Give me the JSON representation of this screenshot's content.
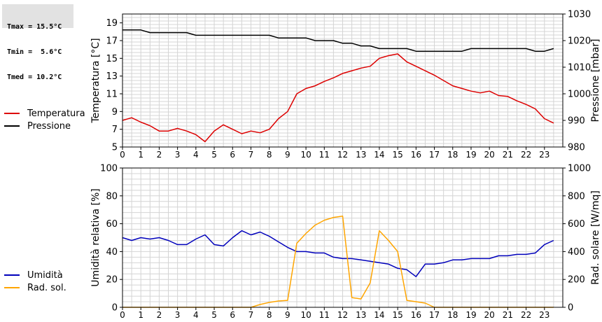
{
  "stats": {
    "lines": [
      "Tmax = 15.5°C",
      "Tmin =  5.6°C",
      "Tmed = 10.2°C"
    ]
  },
  "colors": {
    "temperature": "#dd0000",
    "pressure": "#000000",
    "humidity": "#0000bb",
    "solar": "#ffa500",
    "grid": "#d4d4d4"
  },
  "chart_data": [
    {
      "type": "line",
      "title": "",
      "xlabel": "",
      "x_ticks": [
        0,
        1,
        2,
        3,
        4,
        5,
        6,
        7,
        8,
        9,
        10,
        11,
        12,
        13,
        14,
        15,
        16,
        17,
        18,
        19,
        20,
        21,
        22,
        23
      ],
      "xlim": [
        0,
        24
      ],
      "ylabel": "Temperatura [°C]",
      "ylim": [
        5,
        20
      ],
      "y_ticks": [
        5,
        7,
        9,
        11,
        13,
        15,
        17,
        19
      ],
      "y2label": "Pressione [mbar]",
      "y2lim": [
        980,
        1030
      ],
      "y2_ticks": [
        980,
        990,
        1000,
        1010,
        1020,
        1030
      ],
      "grid": true,
      "legend_position": "left",
      "series": [
        {
          "name": "Temperatura",
          "axis": "left",
          "color": "#dd0000",
          "x": [
            0,
            0.5,
            1,
            1.5,
            2,
            2.5,
            3,
            3.5,
            4,
            4.5,
            5,
            5.5,
            6,
            6.5,
            7,
            7.5,
            8,
            8.5,
            9,
            9.5,
            10,
            10.5,
            11,
            11.5,
            12,
            12.5,
            13,
            13.5,
            14,
            14.5,
            15,
            15.5,
            16,
            16.5,
            17,
            17.5,
            18,
            18.5,
            19,
            19.5,
            20,
            20.5,
            21,
            21.5,
            22,
            22.5,
            23,
            23.5
          ],
          "y": [
            8.0,
            8.3,
            7.8,
            7.4,
            6.8,
            6.8,
            7.1,
            6.8,
            6.4,
            5.6,
            6.8,
            7.5,
            7.0,
            6.5,
            6.8,
            6.6,
            7.0,
            8.2,
            9.0,
            11.0,
            11.6,
            11.9,
            12.4,
            12.8,
            13.3,
            13.6,
            13.9,
            14.1,
            15.0,
            15.3,
            15.5,
            14.6,
            14.1,
            13.6,
            13.1,
            12.5,
            11.9,
            11.6,
            11.3,
            11.1,
            11.3,
            10.8,
            10.7,
            10.2,
            9.8,
            9.3,
            8.2,
            7.7
          ]
        },
        {
          "name": "Pressione",
          "axis": "right",
          "color": "#000000",
          "x": [
            0,
            0.5,
            1,
            1.5,
            2,
            2.5,
            3,
            3.5,
            4,
            4.5,
            5,
            5.5,
            6,
            6.5,
            7,
            7.5,
            8,
            8.5,
            9,
            9.5,
            10,
            10.5,
            11,
            11.5,
            12,
            12.5,
            13,
            13.5,
            14,
            14.5,
            15,
            15.5,
            16,
            16.5,
            17,
            17.5,
            18,
            18.5,
            19,
            19.5,
            20,
            20.5,
            21,
            21.5,
            22,
            22.5,
            23,
            23.5
          ],
          "y": [
            1024,
            1024,
            1024,
            1023,
            1023,
            1023,
            1023,
            1023,
            1022,
            1022,
            1022,
            1022,
            1022,
            1022,
            1022,
            1022,
            1022,
            1021,
            1021,
            1021,
            1021,
            1020,
            1020,
            1020,
            1019,
            1019,
            1018,
            1018,
            1017,
            1017,
            1017,
            1017,
            1016,
            1016,
            1016,
            1016,
            1016,
            1016,
            1017,
            1017,
            1017,
            1017,
            1017,
            1017,
            1017,
            1016,
            1016,
            1017
          ]
        }
      ]
    },
    {
      "type": "line",
      "title": "",
      "xlabel": "",
      "x_ticks": [
        0,
        1,
        2,
        3,
        4,
        5,
        6,
        7,
        8,
        9,
        10,
        11,
        12,
        13,
        14,
        15,
        16,
        17,
        18,
        19,
        20,
        21,
        22,
        23
      ],
      "xlim": [
        0,
        24
      ],
      "ylabel": "Umidità relativa [%]",
      "ylim": [
        0,
        100
      ],
      "y_ticks": [
        0,
        20,
        40,
        60,
        80,
        100
      ],
      "y2label": "Rad. solare [W/mq]",
      "y2lim": [
        0,
        1000
      ],
      "y2_ticks": [
        0,
        200,
        400,
        600,
        800,
        1000
      ],
      "grid": true,
      "legend_position": "left",
      "series": [
        {
          "name": "Umidità",
          "axis": "left",
          "color": "#0000bb",
          "x": [
            0,
            0.5,
            1,
            1.5,
            2,
            2.5,
            3,
            3.5,
            4,
            4.5,
            5,
            5.5,
            6,
            6.5,
            7,
            7.5,
            8,
            8.5,
            9,
            9.5,
            10,
            10.5,
            11,
            11.5,
            12,
            12.5,
            13,
            13.5,
            14,
            14.5,
            15,
            15.5,
            16,
            16.5,
            17,
            17.5,
            18,
            18.5,
            19,
            19.5,
            20,
            20.5,
            21,
            21.5,
            22,
            22.5,
            23,
            23.5
          ],
          "y": [
            50,
            48,
            50,
            49,
            50,
            48,
            45,
            45,
            49,
            52,
            45,
            44,
            50,
            55,
            52,
            54,
            51,
            47,
            43,
            40,
            40,
            39,
            39,
            36,
            35,
            35,
            34,
            33,
            32,
            31,
            28,
            27,
            22,
            31,
            31,
            32,
            34,
            34,
            35,
            35,
            35,
            37,
            37,
            38,
            38,
            39,
            45,
            48
          ]
        },
        {
          "name": "Rad. sol.",
          "axis": "right",
          "color": "#ffa500",
          "x": [
            0,
            0.5,
            1,
            1.5,
            2,
            2.5,
            3,
            3.5,
            4,
            4.5,
            5,
            5.5,
            6,
            6.5,
            7,
            7.5,
            8,
            8.5,
            9,
            9.5,
            10,
            10.5,
            11,
            11.5,
            12,
            12.5,
            13,
            13.5,
            14,
            14.5,
            15,
            15.5,
            16,
            16.5,
            17,
            17.5,
            18,
            18.5,
            19,
            19.5,
            20,
            20.5,
            21,
            21.5,
            22,
            22.5,
            23,
            23.5
          ],
          "y": [
            0,
            0,
            0,
            0,
            0,
            0,
            0,
            0,
            0,
            0,
            0,
            0,
            0,
            0,
            0,
            20,
            35,
            45,
            50,
            460,
            530,
            590,
            625,
            645,
            655,
            70,
            60,
            175,
            550,
            480,
            400,
            50,
            40,
            30,
            0,
            0,
            0,
            0,
            0,
            0,
            0,
            0,
            0,
            0,
            0,
            0,
            0,
            0
          ]
        }
      ]
    }
  ]
}
